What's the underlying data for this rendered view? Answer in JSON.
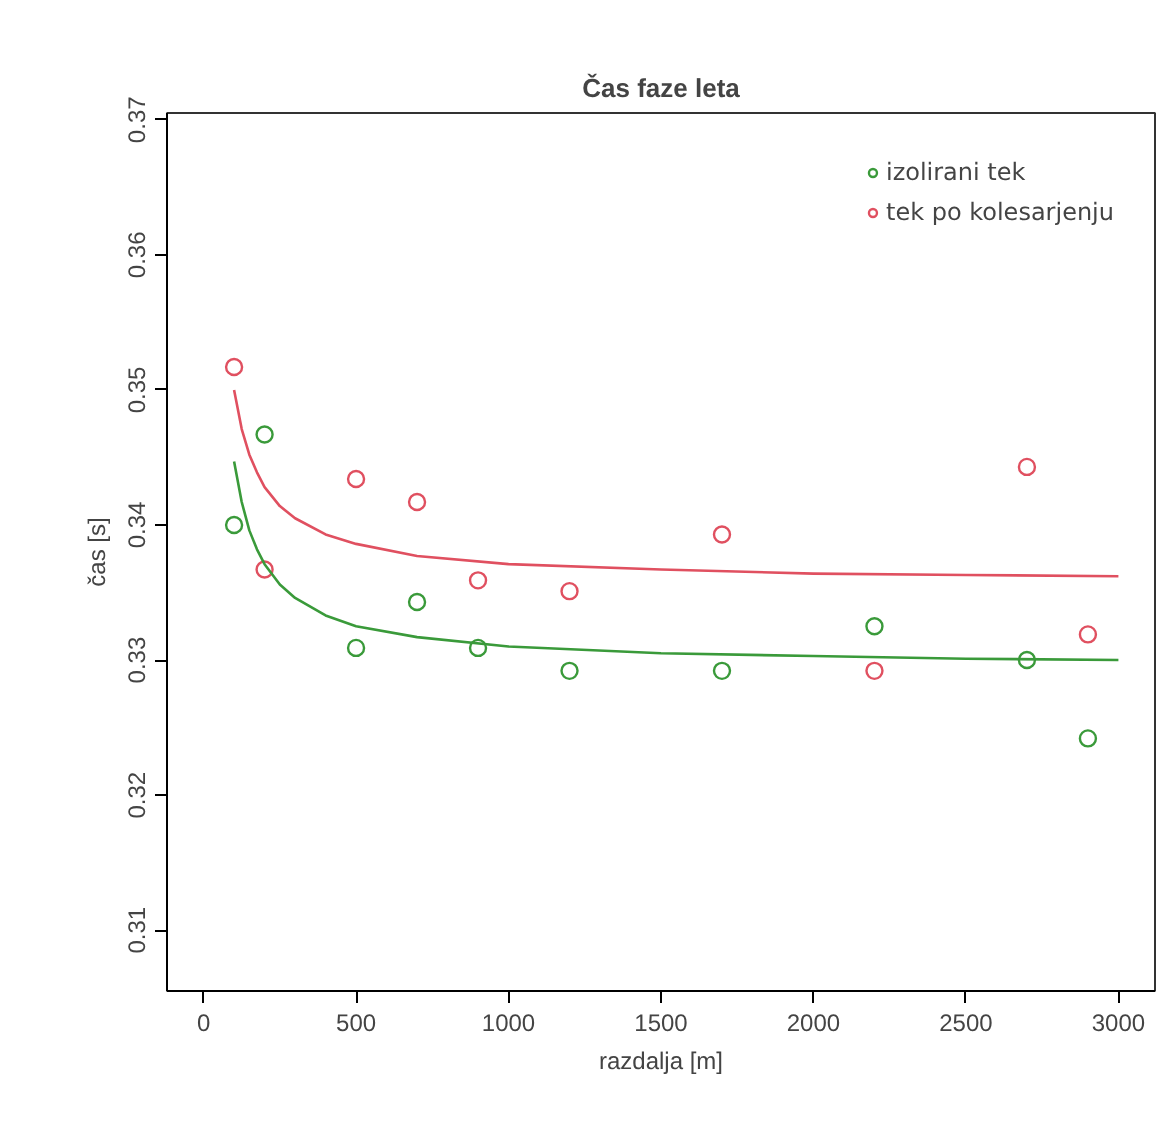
{
  "chart_data": {
    "type": "scatter",
    "title": "Čas faze leta",
    "xlabel": "razdalja [m]",
    "ylabel": "čas [s]",
    "xlim": [
      -120,
      3120
    ],
    "ylim": [
      0.3055,
      0.3705
    ],
    "xticks": [
      0,
      500,
      1000,
      1500,
      2000,
      2500,
      3000
    ],
    "yticks": [
      {
        "value": 0.31,
        "label": "0.31"
      },
      {
        "value": 0.32,
        "label": "0.32"
      },
      {
        "value": 0.33,
        "label": "0.33"
      },
      {
        "value": 0.34,
        "label": "0.34"
      },
      {
        "value": 0.35,
        "label": "0.35"
      },
      {
        "value": 0.36,
        "label": "0.36"
      },
      {
        "value": 0.37,
        "label": "0.37"
      }
    ],
    "x": [
      100,
      200,
      500,
      700,
      900,
      1200,
      1700,
      2200,
      2700,
      2900
    ],
    "marker": "circle",
    "grid": false,
    "legend": "top right",
    "series": [
      {
        "name": "izolirani tek",
        "color": "#3a9a3a",
        "values": [
          0.34,
          0.3467,
          0.3309,
          0.3343,
          0.3309,
          0.3292,
          0.3292,
          0.3325,
          0.33,
          0.3242
        ]
      },
      {
        "name": "tek po kolesarjenju",
        "color": "#e05060",
        "values": [
          0.3517,
          0.3367,
          0.3434,
          0.3417,
          0.3359,
          0.3351,
          0.3393,
          0.3292,
          0.3443,
          0.3319
        ]
      },
      {
        "type": "line",
        "marker": "none",
        "color": "#3a9a3a",
        "x": [
          100,
          125,
          150,
          175,
          200,
          250,
          300,
          400,
          500,
          700,
          1000,
          1500,
          2000,
          2500,
          3000
        ],
        "values": [
          0.3447,
          0.3417,
          0.3396,
          0.3382,
          0.3371,
          0.3356,
          0.3346,
          0.3333,
          0.3325,
          0.3317,
          0.331,
          0.3305,
          0.3303,
          0.3301,
          0.33
        ]
      },
      {
        "type": "line",
        "marker": "none",
        "color": "#e05060",
        "x": [
          100,
          125,
          150,
          175,
          200,
          250,
          300,
          400,
          500,
          700,
          1000,
          1500,
          2000,
          2500,
          3000
        ],
        "values": [
          0.35,
          0.3471,
          0.3452,
          0.3439,
          0.3428,
          0.3414,
          0.3405,
          0.3393,
          0.3386,
          0.3377,
          0.3371,
          0.3367,
          0.3364,
          0.3363,
          0.3362
        ]
      }
    ]
  }
}
